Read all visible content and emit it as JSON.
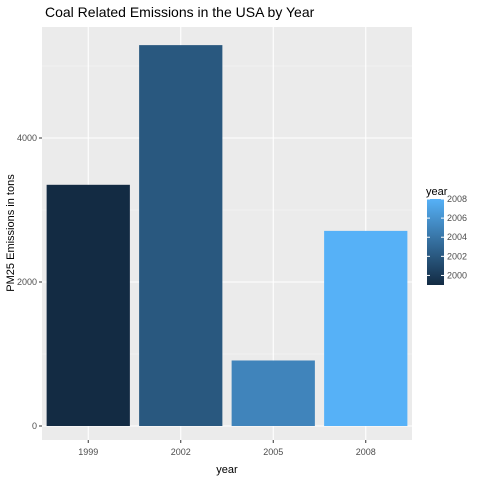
{
  "chart_data": {
    "type": "bar",
    "title": "Coal Related Emissions in the USA by Year",
    "xlabel": "year",
    "ylabel": "PM25 Emissions in tons",
    "categories": [
      "1999",
      "2002",
      "2005",
      "2008"
    ],
    "values": [
      3350,
      5290,
      910,
      2710
    ],
    "ylim": [
      0,
      5550
    ],
    "y_ticks": [
      0,
      2000,
      4000
    ],
    "y_tick_labels": [
      "0",
      "2000",
      "4000"
    ],
    "grid": true,
    "legend": {
      "title": "year",
      "position": "right",
      "type": "colorbar",
      "range": [
        1999,
        2008
      ],
      "ticks": [
        2000,
        2002,
        2004,
        2006,
        2008
      ],
      "tick_labels": [
        "2000",
        "2002",
        "2004",
        "2006",
        "2008"
      ],
      "low_color": "#132B43",
      "high_color": "#56B1F7"
    },
    "colors": {
      "panel_background": "#EBEBEB",
      "grid_major": "#FFFFFF",
      "grid_minor": "#F5F5F5"
    }
  }
}
